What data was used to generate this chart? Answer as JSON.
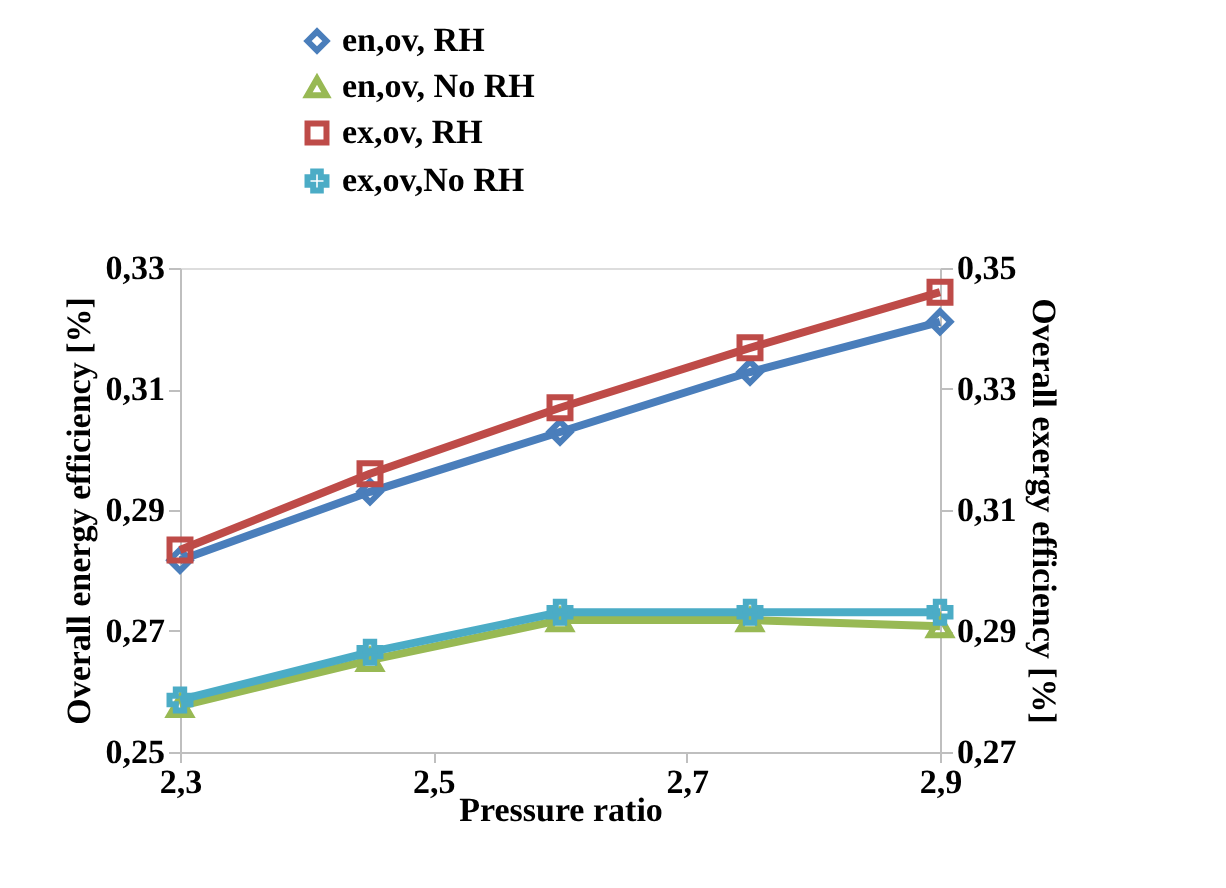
{
  "chart_data": {
    "type": "line",
    "xlabel": "Pressure ratio",
    "ylabel": "Overall energy efficiency [%]",
    "y2label": "Overall exergy efficiency [%]",
    "x": [
      2.3,
      2.45,
      2.6,
      2.75,
      2.9
    ],
    "xlim": [
      2.3,
      2.9
    ],
    "xticks": [
      {
        "value": 2.3,
        "label": "2,3"
      },
      {
        "value": 2.5,
        "label": "2,5"
      },
      {
        "value": 2.7,
        "label": "2,7"
      },
      {
        "value": 2.9,
        "label": "2,9"
      }
    ],
    "ylim": [
      0.25,
      0.33
    ],
    "yticks": [
      {
        "value": 0.25,
        "label": "0,25"
      },
      {
        "value": 0.27,
        "label": "0,27"
      },
      {
        "value": 0.29,
        "label": "0,29"
      },
      {
        "value": 0.31,
        "label": "0,31"
      },
      {
        "value": 0.33,
        "label": "0,33"
      }
    ],
    "y2lim": [
      0.27,
      0.35
    ],
    "y2ticks": [
      {
        "value": 0.27,
        "label": "0,27"
      },
      {
        "value": 0.29,
        "label": "0,29"
      },
      {
        "value": 0.31,
        "label": "0,31"
      },
      {
        "value": 0.33,
        "label": "0,33"
      },
      {
        "value": 0.35,
        "label": "0,35"
      }
    ],
    "series": [
      {
        "name": "en,ov, RH",
        "color": "#4a7ebb",
        "marker": "diamond",
        "values": [
          0.2817,
          0.293,
          0.3029,
          0.3128,
          0.3211
        ]
      },
      {
        "name": "en,ov, No RH",
        "color": "#98b954",
        "marker": "triangle",
        "values": [
          0.2576,
          0.2652,
          0.2718,
          0.2718,
          0.2708
        ]
      },
      {
        "name": "ex,ov, RH",
        "color": "#be4b48",
        "marker": "square",
        "axis": "y2",
        "values": [
          0.3034,
          0.316,
          0.3269,
          0.3368,
          0.346
        ]
      },
      {
        "name": "ex,ov,No RH",
        "color": "#4bacc6",
        "marker": "cross",
        "axis": "y2",
        "values": [
          0.2786,
          0.2865,
          0.2931,
          0.2931,
          0.2931
        ]
      }
    ],
    "legend": "top left",
    "grid": false,
    "line_style": "solid"
  }
}
